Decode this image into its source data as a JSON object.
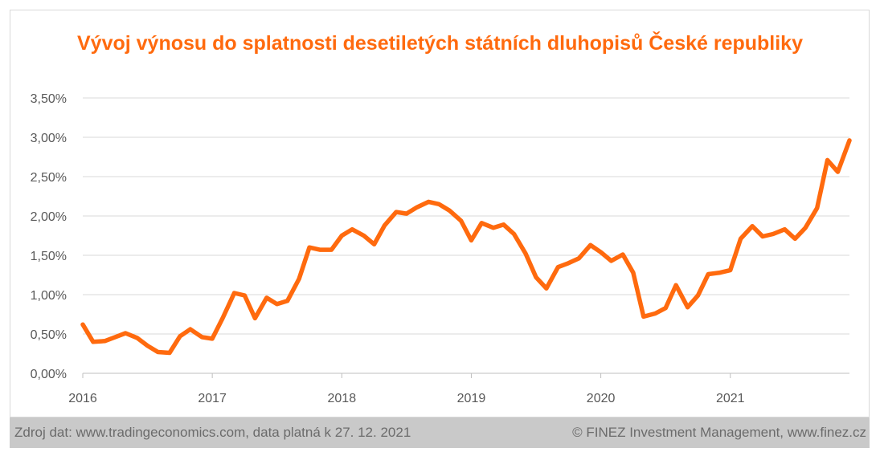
{
  "footer": {
    "source": "Zdroj dat: www.tradingeconomics.com, data platná k 27. 12. 2021",
    "copyright": "© FINEZ Investment Management, www.finez.cz"
  },
  "colors": {
    "line": "#ff6a0e",
    "title": "#ff6a0e",
    "grid": "#d9d9d9",
    "footer_bg": "#c9c9c9"
  },
  "chart_data": {
    "type": "line",
    "title": "Vývoj výnosu do splatnosti desetiletých státních dluhopisů České republiky",
    "xlabel": "",
    "ylabel": "",
    "ylim": [
      0,
      3.5
    ],
    "xlim": [
      2016.0,
      2021.92
    ],
    "grid": "horizontal",
    "legend": "none",
    "y_ticks": [
      "0,00%",
      "0,50%",
      "1,00%",
      "1,50%",
      "2,00%",
      "2,50%",
      "3,00%",
      "3,50%"
    ],
    "x_ticks": [
      "2016",
      "2017",
      "2018",
      "2019",
      "2020",
      "2021"
    ],
    "series": [
      {
        "x": [
          2016.0,
          2016.08,
          2016.17,
          2016.25,
          2016.33,
          2016.42,
          2016.5,
          2016.58,
          2016.67,
          2016.75,
          2016.83,
          2016.92,
          2017.0,
          2017.08,
          2017.17,
          2017.25,
          2017.33,
          2017.42,
          2017.5,
          2017.58,
          2017.67,
          2017.75,
          2017.83,
          2017.92,
          2018.0,
          2018.08,
          2018.17,
          2018.25,
          2018.33,
          2018.42,
          2018.5,
          2018.58,
          2018.67,
          2018.75,
          2018.83,
          2018.92,
          2019.0,
          2019.08,
          2019.17,
          2019.25,
          2019.33,
          2019.42,
          2019.5,
          2019.58,
          2019.67,
          2019.75,
          2019.83,
          2019.92,
          2020.0,
          2020.08,
          2020.17,
          2020.25,
          2020.33,
          2020.42,
          2020.5,
          2020.58,
          2020.67,
          2020.75,
          2020.83,
          2020.92,
          2021.0,
          2021.08,
          2021.17,
          2021.25,
          2021.33,
          2021.42,
          2021.5,
          2021.58,
          2021.67,
          2021.75,
          2021.83,
          2021.92
        ],
        "values": [
          0.62,
          0.4,
          0.41,
          0.46,
          0.51,
          0.45,
          0.35,
          0.27,
          0.26,
          0.47,
          0.56,
          0.46,
          0.44,
          0.7,
          1.02,
          0.99,
          0.7,
          0.96,
          0.88,
          0.92,
          1.2,
          1.6,
          1.57,
          1.57,
          1.75,
          1.83,
          1.75,
          1.64,
          1.88,
          2.05,
          2.03,
          2.11,
          2.18,
          2.15,
          2.07,
          1.94,
          1.69,
          1.91,
          1.85,
          1.89,
          1.77,
          1.52,
          1.22,
          1.08,
          1.35,
          1.4,
          1.46,
          1.63,
          1.54,
          1.43,
          1.51,
          1.28,
          0.72,
          0.76,
          0.83,
          1.12,
          0.84,
          0.99,
          1.26,
          1.28,
          1.31,
          1.71,
          1.87,
          1.74,
          1.77,
          1.83,
          1.71,
          1.85,
          2.1,
          2.71,
          2.56,
          2.96
        ]
      }
    ]
  }
}
